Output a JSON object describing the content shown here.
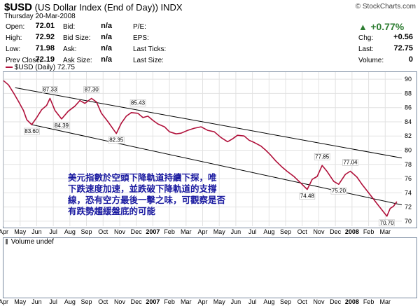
{
  "header": {
    "symbol": "$USD",
    "name": "(US Dollar Index (End of Day))",
    "exchange": "INDX",
    "date": "Thursday  20-Mar-2008",
    "source": "© StockCharts.com"
  },
  "quote": {
    "open_label": "Open:",
    "open": "72.01",
    "high_label": "High:",
    "high": "72.92",
    "low_label": "Low:",
    "low": "71.98",
    "prev_label": "Prev Close:",
    "prev": "72.19",
    "bid_label": "Bid:",
    "bid": "n/a",
    "bidsize_label": "Bid Size:",
    "bidsize": "n/a",
    "ask_label": "Ask:",
    "ask": "n/a",
    "asksize_label": "Ask Size:",
    "asksize": "n/a",
    "pe_label": "P/E:",
    "pe": "",
    "eps_label": "EPS:",
    "eps": "",
    "lastticks_label": "Last Ticks:",
    "lastticks": "",
    "lastsize_label": "Last Size:",
    "lastsize": "",
    "pct_change": "+0.77%",
    "chg_label": "Chg:",
    "chg": "+0.56",
    "last_label": "Last:",
    "last": "72.75",
    "volume_label": "Volume:",
    "volume": "0"
  },
  "price_panel_label": "$USD (Daily) 72.75",
  "volume_panel_label": "Volume undef",
  "annotation": "美元指數於空頭下降軌道持續下探，唯\n下跌速度加速，並跌破下降軌道的支撐\n線，恐有空方最後一擊之味，可觀察是否\n有跌勢趨緩盤底的可能",
  "colors": {
    "price_line": "#b0103a",
    "trendline": "#000000",
    "grid": "#e2e2e2",
    "note_text": "#1a1aa0",
    "up": "#2e7d32"
  },
  "chart_data": {
    "type": "line",
    "title": "$USD (Daily) 72.75",
    "xlabel": "",
    "ylabel": "",
    "x_tick_labels": [
      "Apr",
      "May",
      "Jun",
      "Jul",
      "Aug",
      "Sep",
      "Oct",
      "Nov",
      "Dec",
      "2007",
      "Feb",
      "Mar",
      "Apr",
      "May",
      "Jun",
      "Jul",
      "Aug",
      "Sep",
      "Oct",
      "Nov",
      "Dec",
      "2008",
      "Feb",
      "Mar"
    ],
    "y_ticks": [
      70,
      72,
      74,
      76,
      78,
      80,
      82,
      84,
      86,
      88,
      90
    ],
    "ylim": [
      69.3,
      91.0
    ],
    "xlim": [
      0,
      24
    ],
    "grid": true,
    "x": [
      0.0,
      0.3,
      0.6,
      0.9,
      1.2,
      1.4,
      1.7,
      2.0,
      2.3,
      2.6,
      2.8,
      3.1,
      3.5,
      3.9,
      4.3,
      4.6,
      4.9,
      5.3,
      5.6,
      5.9,
      6.3,
      6.6,
      6.8,
      7.1,
      7.4,
      7.7,
      8.1,
      8.4,
      8.7,
      9.0,
      9.3,
      9.7,
      10.0,
      10.4,
      10.7,
      11.1,
      11.5,
      11.9,
      12.3,
      12.7,
      13.1,
      13.5,
      13.8,
      14.1,
      14.5,
      14.8,
      15.1,
      15.5,
      15.8,
      16.1,
      16.4,
      16.8,
      17.1,
      17.5,
      17.9,
      18.3,
      18.6,
      18.9,
      19.2,
      19.5,
      19.9,
      20.2,
      20.6,
      20.9,
      21.3,
      21.6,
      21.9,
      22.2,
      22.5,
      22.8,
      23.1,
      23.3,
      23.5,
      23.7
    ],
    "values": [
      89.8,
      89.2,
      88.1,
      86.9,
      85.6,
      84.3,
      83.6,
      84.6,
      85.7,
      86.3,
      87.3,
      85.6,
      84.4,
      85.5,
      86.2,
      87.0,
      86.6,
      87.3,
      86.8,
      85.2,
      84.0,
      83.0,
      82.35,
      83.8,
      84.8,
      85.3,
      85.2,
      84.6,
      84.8,
      84.2,
      83.7,
      83.3,
      82.6,
      82.3,
      82.4,
      82.8,
      83.1,
      83.3,
      82.8,
      82.6,
      81.8,
      81.2,
      81.6,
      82.1,
      82.0,
      81.4,
      81.1,
      80.6,
      80.0,
      79.3,
      78.5,
      77.6,
      77.0,
      76.3,
      75.4,
      74.48,
      75.9,
      76.3,
      77.85,
      77.0,
      75.6,
      75.2,
      76.6,
      77.04,
      76.2,
      75.2,
      74.3,
      73.4,
      72.5,
      71.6,
      70.7,
      71.8,
      72.1,
      72.75
    ],
    "trendlines": [
      {
        "x": [
          0.7,
          24.0
        ],
        "y": [
          88.8,
          78.9
        ]
      },
      {
        "x": [
          1.7,
          24.0
        ],
        "y": [
          83.6,
          72.3
        ]
      }
    ],
    "peak_labels": [
      {
        "x": 1.7,
        "y": 83.6,
        "text": "83.60"
      },
      {
        "x": 2.8,
        "y": 87.3,
        "text": "87.33"
      },
      {
        "x": 3.5,
        "y": 84.4,
        "text": "84.39"
      },
      {
        "x": 5.3,
        "y": 87.3,
        "text": "87.30"
      },
      {
        "x": 6.8,
        "y": 82.35,
        "text": "82.35"
      },
      {
        "x": 8.1,
        "y": 85.43,
        "text": "85.43"
      },
      {
        "x": 18.3,
        "y": 74.48,
        "text": "74.48"
      },
      {
        "x": 19.2,
        "y": 77.85,
        "text": "77.85"
      },
      {
        "x": 20.2,
        "y": 75.2,
        "text": "75.20"
      },
      {
        "x": 20.9,
        "y": 77.04,
        "text": "77.04"
      },
      {
        "x": 23.1,
        "y": 70.7,
        "text": "70.70"
      }
    ]
  }
}
